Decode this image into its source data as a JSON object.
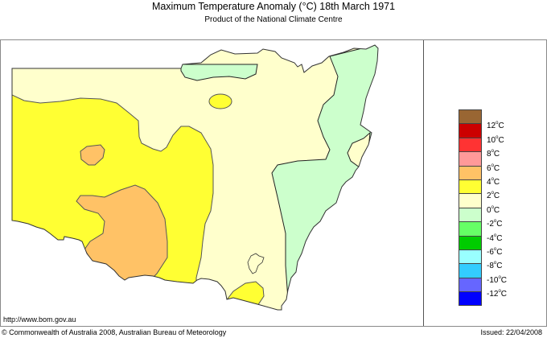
{
  "header": {
    "title": "Maximum Temperature Anomaly (°C)  18th March 1971",
    "subtitle": "Product of the National Climate Centre"
  },
  "footer": {
    "url": "http://www.bom.gov.au",
    "copyright": "© Commonwealth of Australia 2008, Australian Bureau of Meteorology",
    "issued": "Issued: 22/04/2008"
  },
  "map": {
    "region": "New South Wales",
    "variable": "Maximum Temperature Anomaly",
    "units": "°C",
    "date": "18th March 1971"
  },
  "legend": {
    "boxes": [
      {
        "color": "#996633"
      },
      {
        "color": "#cc0000"
      },
      {
        "color": "#ff3333"
      },
      {
        "color": "#ff9999"
      },
      {
        "color": "#ffc266"
      },
      {
        "color": "#ffff33"
      },
      {
        "color": "#ffffcc"
      },
      {
        "color": "#ccffcc"
      },
      {
        "color": "#66ff66"
      },
      {
        "color": "#00cc00"
      },
      {
        "color": "#99ffff"
      },
      {
        "color": "#33ccff"
      },
      {
        "color": "#6666ff"
      },
      {
        "color": "#0000ff"
      }
    ],
    "labels": [
      "12°C",
      "10°C",
      "8°C",
      "6°C",
      "4°C",
      "2°C",
      "0°C",
      "-2°C",
      "-4°C",
      "-6°C",
      "-8°C",
      "-10°C",
      "-12°C"
    ]
  },
  "colors": {
    "anomaly_4": "#ffc266",
    "anomaly_2": "#ffff33",
    "anomaly_0": "#ffffcc",
    "anomaly_neg2": "#ccffcc"
  }
}
